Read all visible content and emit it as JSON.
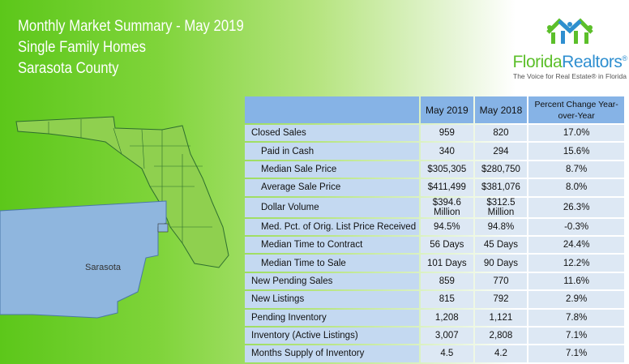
{
  "header": {
    "title": "Monthly Market Summary - May 2019",
    "subtitle": "Single Family Homes",
    "county": "Sarasota County"
  },
  "logo": {
    "name_part1": "Florida",
    "name_part2": "Realtors",
    "registered": "®",
    "tagline": "The Voice for Real Estate® in Florida"
  },
  "map": {
    "label": "Sarasota",
    "highlight_color": "#8fb6de"
  },
  "table": {
    "columns": [
      "",
      "May 2019",
      "May 2018",
      "Percent Change Year-over-Year"
    ],
    "rows": [
      {
        "label": "Closed Sales",
        "indent": false,
        "v2019": "959",
        "v2018": "820",
        "change": "17.0%"
      },
      {
        "label": "Paid in Cash",
        "indent": true,
        "v2019": "340",
        "v2018": "294",
        "change": "15.6%"
      },
      {
        "label": "Median Sale Price",
        "indent": true,
        "v2019": "$305,305",
        "v2018": "$280,750",
        "change": "8.7%"
      },
      {
        "label": "Average Sale Price",
        "indent": true,
        "v2019": "$411,499",
        "v2018": "$381,076",
        "change": "8.0%"
      },
      {
        "label": "Dollar Volume",
        "indent": true,
        "v2019": "$394.6 Million",
        "v2018": "$312.5 Million",
        "change": "26.3%"
      },
      {
        "label": "Med. Pct. of Orig. List Price Received",
        "indent": true,
        "v2019": "94.5%",
        "v2018": "94.8%",
        "change": "-0.3%"
      },
      {
        "label": "Median Time to Contract",
        "indent": true,
        "v2019": "56 Days",
        "v2018": "45 Days",
        "change": "24.4%"
      },
      {
        "label": "Median Time to Sale",
        "indent": true,
        "v2019": "101 Days",
        "v2018": "90 Days",
        "change": "12.2%"
      },
      {
        "label": "New Pending Sales",
        "indent": false,
        "v2019": "859",
        "v2018": "770",
        "change": "11.6%"
      },
      {
        "label": "New Listings",
        "indent": false,
        "v2019": "815",
        "v2018": "792",
        "change": "2.9%"
      },
      {
        "label": "Pending Inventory",
        "indent": false,
        "v2019": "1,208",
        "v2018": "1,121",
        "change": "7.8%"
      },
      {
        "label": "Inventory (Active Listings)",
        "indent": false,
        "v2019": "3,007",
        "v2018": "2,808",
        "change": "7.1%"
      },
      {
        "label": "Months Supply of Inventory",
        "indent": false,
        "v2019": "4.5",
        "v2018": "4.2",
        "change": "7.1%"
      }
    ]
  }
}
